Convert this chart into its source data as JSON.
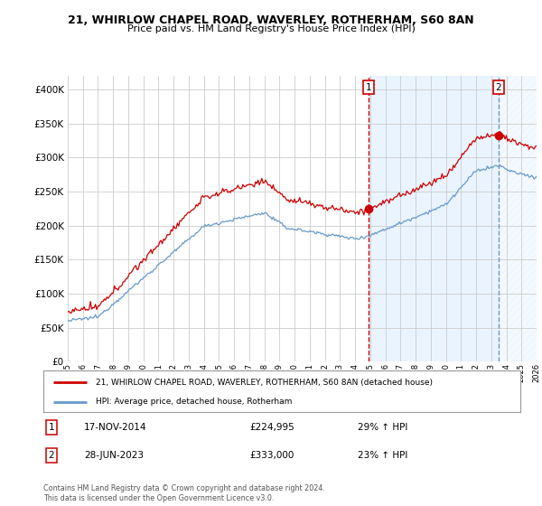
{
  "title1": "21, WHIRLOW CHAPEL ROAD, WAVERLEY, ROTHERHAM, S60 8AN",
  "title2": "Price paid vs. HM Land Registry's House Price Index (HPI)",
  "legend_line1": "21, WHIRLOW CHAPEL ROAD, WAVERLEY, ROTHERHAM, S60 8AN (detached house)",
  "legend_line2": "HPI: Average price, detached house, Rotherham",
  "annotation1_label": "1",
  "annotation1_date": "17-NOV-2014",
  "annotation1_price": "£224,995",
  "annotation1_hpi": "29% ↑ HPI",
  "annotation2_label": "2",
  "annotation2_date": "28-JUN-2023",
  "annotation2_price": "£333,000",
  "annotation2_hpi": "23% ↑ HPI",
  "footer": "Contains HM Land Registry data © Crown copyright and database right 2024.\nThis data is licensed under the Open Government Licence v3.0.",
  "bg_color": "#ffffff",
  "plot_bg_color": "#ffffff",
  "red_color": "#cc0000",
  "blue_color": "#6699cc",
  "shade_color": "#ddeeff",
  "grid_color": "#cccccc",
  "ylim": [
    0,
    420000
  ],
  "yticks": [
    0,
    50000,
    100000,
    150000,
    200000,
    250000,
    300000,
    350000,
    400000
  ],
  "xlim": [
    1995,
    2026
  ],
  "transaction1_x": 2014.88,
  "transaction1_y": 224995,
  "transaction2_x": 2023.49,
  "transaction2_y": 333000
}
